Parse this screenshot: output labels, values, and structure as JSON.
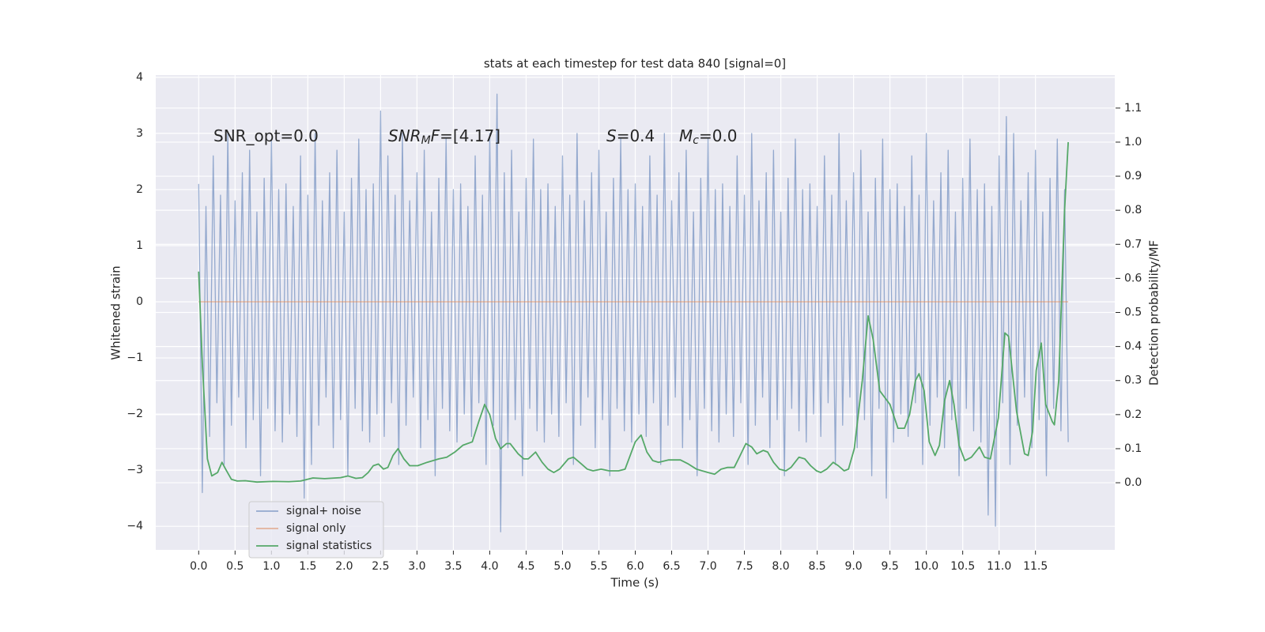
{
  "chart_data": {
    "type": "line",
    "title": "stats at each timestep for test data 840 [signal=0]",
    "x_label": "Time (s)",
    "y_label": "Whitened strain",
    "y2_label": "Detection probability/MF",
    "xlim": [
      -0.59,
      12.59
    ],
    "ylim": [
      -4.42,
      4.04
    ],
    "y2lim": [
      -0.197,
      1.197
    ],
    "xticks": [
      {
        "value": 0,
        "label": "0.0"
      },
      0.5,
      {
        "value": 1,
        "label": "1.0"
      },
      1.5,
      {
        "value": 2,
        "label": "2.0"
      },
      2.5,
      {
        "value": 3,
        "label": "3.0"
      },
      3.5,
      {
        "value": 4,
        "label": "4.0"
      },
      4.5,
      {
        "value": 5,
        "label": "5.0"
      },
      5.5,
      {
        "value": 6,
        "label": "6.0"
      },
      6.5,
      {
        "value": 7,
        "label": "7.0"
      },
      7.5,
      {
        "value": 8,
        "label": "8.0"
      },
      8.5,
      {
        "value": 9,
        "label": "9.0"
      },
      9.5,
      {
        "value": 10,
        "label": "10.0"
      },
      10.5,
      {
        "value": 11,
        "label": "11.0"
      },
      11.5
    ],
    "yticks": [
      {
        "value": -4,
        "label": "−4"
      },
      {
        "value": -3,
        "label": "−3"
      },
      {
        "value": -2,
        "label": "−2"
      },
      {
        "value": -1,
        "label": "−1"
      },
      0,
      1,
      2,
      3,
      4
    ],
    "y2ticks": [
      {
        "value": 0,
        "label": "0.0"
      },
      0.1,
      0.2,
      0.3,
      0.4,
      0.5,
      0.6,
      0.7,
      0.8,
      0.9,
      {
        "value": 1,
        "label": "1.0"
      },
      1.1
    ],
    "grid": true,
    "legend": "lower left",
    "annotations": [
      {
        "text": "SNR_opt=0.0"
      },
      {
        "symbol": "SNR",
        "sub": "M",
        "symbol_tail": "F",
        "text": "=[4.17]"
      },
      {
        "symbol": "S",
        "text": "=0.4"
      },
      {
        "symbol": "M",
        "sub": "c",
        "text": "=0.0"
      }
    ],
    "series": [
      {
        "name": "signal+ noise",
        "color": "#4c72b0",
        "x": [
          0,
          0.05,
          0.1,
          0.15,
          0.2,
          0.25,
          0.3,
          0.35,
          0.4,
          0.45,
          0.5,
          0.55,
          0.6,
          0.65,
          0.7,
          0.75,
          0.8,
          0.85,
          0.9,
          0.95,
          1,
          1.05,
          1.1,
          1.15,
          1.2,
          1.25,
          1.3,
          1.35,
          1.4,
          1.45,
          1.5,
          1.55,
          1.6,
          1.65,
          1.7,
          1.75,
          1.8,
          1.85,
          1.9,
          1.95,
          2,
          2.05,
          2.1,
          2.15,
          2.2,
          2.25,
          2.3,
          2.35,
          2.4,
          2.45,
          2.5,
          2.55,
          2.6,
          2.65,
          2.7,
          2.75,
          2.8,
          2.85,
          2.9,
          2.95,
          3,
          3.05,
          3.1,
          3.15,
          3.2,
          3.25,
          3.3,
          3.35,
          3.4,
          3.45,
          3.5,
          3.55,
          3.6,
          3.65,
          3.7,
          3.75,
          3.8,
          3.85,
          3.9,
          3.95,
          4,
          4.05,
          4.1,
          4.15,
          4.2,
          4.25,
          4.3,
          4.35,
          4.4,
          4.45,
          4.5,
          4.55,
          4.6,
          4.65,
          4.7,
          4.75,
          4.8,
          4.85,
          4.9,
          4.95,
          5,
          5.05,
          5.1,
          5.15,
          5.2,
          5.25,
          5.3,
          5.35,
          5.4,
          5.45,
          5.5,
          5.55,
          5.6,
          5.65,
          5.7,
          5.75,
          5.8,
          5.85,
          5.9,
          5.95,
          6,
          6.05,
          6.1,
          6.15,
          6.2,
          6.25,
          6.3,
          6.35,
          6.4,
          6.45,
          6.5,
          6.55,
          6.6,
          6.65,
          6.7,
          6.75,
          6.8,
          6.85,
          6.9,
          6.95,
          7,
          7.05,
          7.1,
          7.15,
          7.2,
          7.25,
          7.3,
          7.35,
          7.4,
          7.45,
          7.5,
          7.55,
          7.6,
          7.65,
          7.7,
          7.75,
          7.8,
          7.85,
          7.9,
          7.95,
          8,
          8.05,
          8.1,
          8.15,
          8.2,
          8.25,
          8.3,
          8.35,
          8.4,
          8.45,
          8.5,
          8.55,
          8.6,
          8.65,
          8.7,
          8.75,
          8.8,
          8.85,
          8.9,
          8.95,
          9,
          9.05,
          9.1,
          9.15,
          9.2,
          9.25,
          9.3,
          9.35,
          9.4,
          9.45,
          9.5,
          9.55,
          9.6,
          9.65,
          9.7,
          9.75,
          9.8,
          9.85,
          9.9,
          9.95,
          10,
          10.05,
          10.1,
          10.15,
          10.2,
          10.25,
          10.3,
          10.35,
          10.4,
          10.45,
          10.5,
          10.55,
          10.6,
          10.65,
          10.7,
          10.75,
          10.8,
          10.85,
          10.9,
          10.95,
          11,
          11.05,
          11.1,
          11.15,
          11.2,
          11.25,
          11.3,
          11.35,
          11.4,
          11.45,
          11.5,
          11.55,
          11.6,
          11.65,
          11.7,
          11.75,
          11.8,
          11.85,
          11.9,
          11.95
        ],
        "values": [
          2.1,
          -3.4,
          1.7,
          -2.4,
          2.6,
          -1.8,
          1.9,
          -2.9,
          3.0,
          -2.2,
          1.8,
          -1.7,
          2.3,
          -2.6,
          2.7,
          -2.1,
          1.6,
          -3.1,
          2.2,
          -1.9,
          2.9,
          -2.3,
          2.0,
          -2.5,
          2.1,
          -2.0,
          1.7,
          -2.4,
          2.6,
          -3.5,
          1.9,
          -2.9,
          3.0,
          -2.2,
          1.8,
          -1.7,
          2.3,
          -2.6,
          2.7,
          -2.1,
          1.6,
          -3.1,
          2.2,
          -1.9,
          2.9,
          -2.3,
          2.0,
          -2.5,
          2.1,
          -2.0,
          3.4,
          -2.4,
          2.6,
          -1.8,
          1.9,
          -2.9,
          3.0,
          -2.2,
          1.8,
          -1.7,
          2.3,
          -2.6,
          2.7,
          -2.1,
          1.6,
          -3.1,
          2.2,
          -1.9,
          2.9,
          -2.3,
          2.0,
          -2.5,
          2.1,
          -2.0,
          1.7,
          -2.4,
          2.6,
          -1.8,
          1.9,
          -2.9,
          3.0,
          -2.2,
          3.7,
          -4.1,
          2.3,
          -2.6,
          2.7,
          -2.1,
          1.6,
          -3.1,
          2.2,
          -1.9,
          2.9,
          -2.3,
          2.0,
          -2.5,
          2.1,
          -2.0,
          1.7,
          -2.4,
          2.6,
          -1.8,
          1.9,
          -2.9,
          3.0,
          -2.2,
          1.8,
          -1.7,
          2.3,
          -2.6,
          2.7,
          -2.1,
          1.6,
          -3.1,
          2.2,
          -1.9,
          2.9,
          -2.3,
          2.0,
          -2.5,
          2.1,
          -2.0,
          1.7,
          -2.4,
          2.6,
          -1.8,
          1.9,
          -2.9,
          3.0,
          -2.2,
          1.8,
          -1.7,
          2.3,
          -2.6,
          2.7,
          -2.1,
          1.6,
          -3.1,
          2.2,
          -1.9,
          2.9,
          -2.3,
          2.0,
          -2.5,
          2.1,
          -2.0,
          1.7,
          -2.4,
          2.6,
          -1.8,
          1.9,
          -2.9,
          3.0,
          -2.2,
          1.8,
          -1.7,
          2.3,
          -2.6,
          2.7,
          -2.1,
          1.6,
          -3.1,
          2.2,
          -1.9,
          2.9,
          -2.3,
          2.0,
          -2.5,
          2.1,
          -2.0,
          1.7,
          -2.4,
          2.6,
          -1.8,
          1.9,
          -2.9,
          3.0,
          -2.2,
          1.8,
          -1.7,
          2.3,
          -2.6,
          2.7,
          -2.1,
          1.6,
          -3.1,
          2.2,
          -1.9,
          2.9,
          -3.5,
          2.0,
          -2.5,
          2.1,
          -2.0,
          1.7,
          -2.4,
          2.6,
          -1.8,
          1.9,
          -2.9,
          3.0,
          -2.2,
          1.8,
          -1.7,
          2.3,
          -2.6,
          2.7,
          -2.1,
          1.6,
          -3.1,
          2.2,
          -1.9,
          2.9,
          -2.3,
          2.0,
          -2.5,
          2.1,
          -3.8,
          1.7,
          -4.0,
          2.6,
          -1.8,
          3.3,
          -2.9,
          3.0,
          -2.2,
          1.8,
          -1.7,
          2.3,
          -2.6,
          2.7,
          -2.1,
          1.6,
          -3.1,
          2.2,
          -1.9,
          2.9,
          -2.3,
          2.0,
          -2.5
        ]
      },
      {
        "name": "signal only",
        "color": "#dd8452",
        "x": [
          0,
          11.95
        ],
        "values": [
          0,
          0
        ]
      },
      {
        "name": "signal statistics",
        "color": "#55a868",
        "axis": "y2",
        "x": [
          0,
          0.05,
          0.12,
          0.18,
          0.26,
          0.32,
          0.37,
          0.45,
          0.53,
          0.64,
          0.8,
          1.02,
          1.24,
          1.4,
          1.57,
          1.73,
          1.95,
          2.05,
          2.16,
          2.25,
          2.33,
          2.4,
          2.47,
          2.54,
          2.6,
          2.67,
          2.74,
          2.82,
          2.9,
          3.01,
          3.14,
          3.3,
          3.41,
          3.52,
          3.63,
          3.76,
          3.85,
          3.93,
          4.0,
          4.08,
          4.15,
          4.23,
          4.28,
          4.39,
          4.47,
          4.53,
          4.63,
          4.72,
          4.8,
          4.88,
          4.96,
          5.08,
          5.15,
          5.26,
          5.34,
          5.42,
          5.53,
          5.64,
          5.77,
          5.86,
          5.93,
          6.0,
          6.08,
          6.16,
          6.24,
          6.32,
          6.46,
          6.62,
          6.73,
          6.84,
          7.0,
          7.09,
          7.18,
          7.27,
          7.36,
          7.43,
          7.52,
          7.6,
          7.67,
          7.76,
          7.82,
          7.9,
          7.98,
          8.07,
          8.14,
          8.25,
          8.33,
          8.41,
          8.49,
          8.55,
          8.63,
          8.72,
          8.79,
          8.87,
          8.93,
          9.01,
          9.12,
          9.2,
          9.27,
          9.36,
          9.5,
          9.61,
          9.7,
          9.77,
          9.85,
          9.9,
          9.97,
          10.04,
          10.12,
          10.18,
          10.25,
          10.32,
          10.38,
          10.45,
          10.53,
          10.62,
          10.73,
          10.8,
          10.88,
          10.99,
          11.08,
          11.13,
          11.24,
          11.35,
          11.4,
          11.46,
          11.51,
          11.58,
          11.64,
          11.73,
          11.76,
          11.82,
          11.86,
          11.9,
          11.95
        ],
        "values": [
          0.62,
          0.35,
          0.07,
          0.02,
          0.03,
          0.06,
          0.04,
          0.01,
          0.005,
          0.006,
          0.002,
          0.004,
          0.003,
          0.005,
          0.014,
          0.012,
          0.015,
          0.02,
          0.013,
          0.015,
          0.03,
          0.05,
          0.055,
          0.04,
          0.045,
          0.08,
          0.1,
          0.07,
          0.05,
          0.05,
          0.06,
          0.07,
          0.075,
          0.09,
          0.11,
          0.12,
          0.18,
          0.23,
          0.2,
          0.13,
          0.1,
          0.115,
          0.115,
          0.085,
          0.07,
          0.07,
          0.09,
          0.06,
          0.04,
          0.03,
          0.04,
          0.07,
          0.075,
          0.055,
          0.04,
          0.035,
          0.04,
          0.035,
          0.035,
          0.04,
          0.08,
          0.12,
          0.14,
          0.09,
          0.065,
          0.06,
          0.067,
          0.067,
          0.055,
          0.04,
          0.03,
          0.025,
          0.04,
          0.045,
          0.045,
          0.075,
          0.115,
          0.105,
          0.085,
          0.095,
          0.09,
          0.06,
          0.04,
          0.035,
          0.045,
          0.075,
          0.07,
          0.05,
          0.035,
          0.03,
          0.04,
          0.06,
          0.05,
          0.035,
          0.04,
          0.1,
          0.3,
          0.49,
          0.42,
          0.27,
          0.23,
          0.16,
          0.16,
          0.2,
          0.3,
          0.32,
          0.27,
          0.12,
          0.08,
          0.11,
          0.24,
          0.3,
          0.23,
          0.11,
          0.065,
          0.075,
          0.105,
          0.075,
          0.07,
          0.19,
          0.44,
          0.43,
          0.21,
          0.085,
          0.08,
          0.15,
          0.33,
          0.41,
          0.23,
          0.18,
          0.17,
          0.3,
          0.55,
          0.8,
          1.0
        ]
      }
    ]
  }
}
